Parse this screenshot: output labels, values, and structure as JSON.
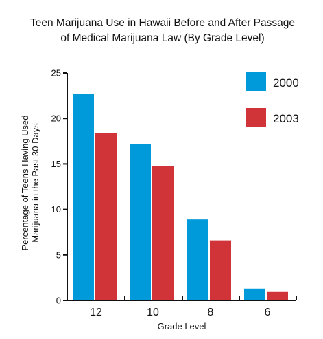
{
  "chart_data": {
    "type": "bar",
    "title_line1": "Teen Marijuana Use in Hawaii Before and After Passage",
    "title_line2": "of Medical Marijuana Law (By Grade Level)",
    "xlabel": "Grade Level",
    "ylabel_line1": "Percentage of Teens Having Used",
    "ylabel_line2": "Marijuana in the Past 30 Days",
    "categories": [
      "12",
      "10",
      "8",
      "6"
    ],
    "ylim": [
      0,
      25
    ],
    "yticks": [
      0,
      5,
      10,
      15,
      20,
      25
    ],
    "grid": false,
    "legend_position": "top-right",
    "series": [
      {
        "name": "2000",
        "color": "#0099d9",
        "values": [
          22.7,
          17.2,
          8.9,
          1.3
        ]
      },
      {
        "name": "2003",
        "color": "#d03438",
        "values": [
          18.4,
          14.8,
          6.6,
          1.0
        ]
      }
    ]
  }
}
